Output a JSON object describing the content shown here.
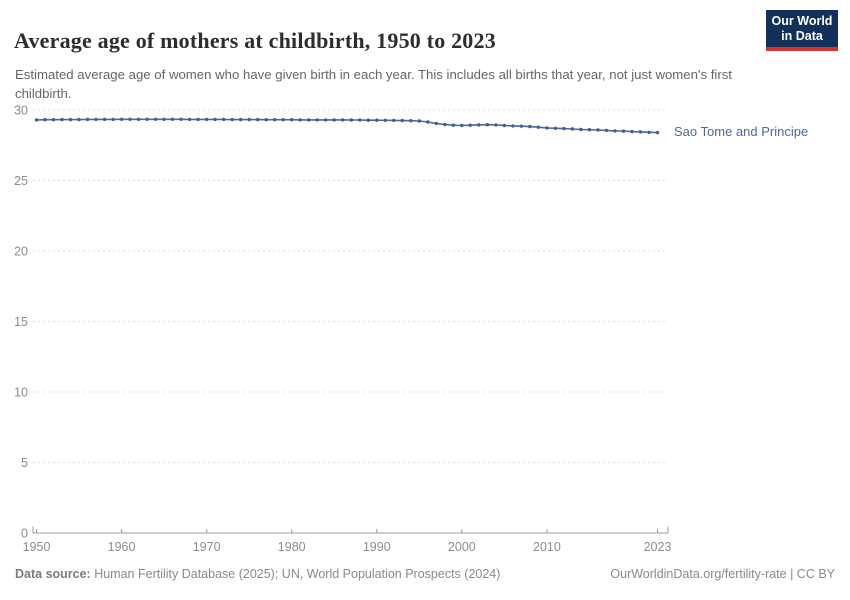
{
  "header": {
    "title": "Average age of mothers at childbirth, 1950 to 2023",
    "subtitle": "Estimated average age of women who have given birth in each year. This includes all births that year, not just women's first childbirth.",
    "logo": {
      "line1": "Our World",
      "line2": "in Data"
    }
  },
  "chart_data": {
    "type": "line",
    "title": "Average age of mothers at childbirth, 1950 to 2023",
    "xlabel": "",
    "ylabel": "",
    "xlim": [
      1950,
      2023
    ],
    "ylim": [
      0,
      30
    ],
    "x_ticks": [
      1950,
      1960,
      1970,
      1980,
      1990,
      2000,
      2010,
      2023
    ],
    "y_ticks": [
      0,
      5,
      10,
      15,
      20,
      25,
      30
    ],
    "grid": "horizontal-dashed",
    "legend_position": "end-of-line-label",
    "series": [
      {
        "name": "Sao Tome and Principe",
        "color": "#4C6A9C",
        "marker_color": "#3F5E96",
        "x": [
          1950,
          1951,
          1952,
          1953,
          1954,
          1955,
          1956,
          1957,
          1958,
          1959,
          1960,
          1961,
          1962,
          1963,
          1964,
          1965,
          1966,
          1967,
          1968,
          1969,
          1970,
          1971,
          1972,
          1973,
          1974,
          1975,
          1976,
          1977,
          1978,
          1979,
          1980,
          1981,
          1982,
          1983,
          1984,
          1985,
          1986,
          1987,
          1988,
          1989,
          1990,
          1991,
          1992,
          1993,
          1994,
          1995,
          1996,
          1997,
          1998,
          1999,
          2000,
          2001,
          2002,
          2003,
          2004,
          2005,
          2006,
          2007,
          2008,
          2009,
          2010,
          2011,
          2012,
          2013,
          2014,
          2015,
          2016,
          2017,
          2018,
          2019,
          2020,
          2021,
          2022,
          2023
        ],
        "values": [
          29.3,
          29.31,
          29.31,
          29.32,
          29.32,
          29.32,
          29.33,
          29.33,
          29.33,
          29.33,
          29.34,
          29.34,
          29.34,
          29.34,
          29.34,
          29.34,
          29.34,
          29.34,
          29.33,
          29.33,
          29.33,
          29.33,
          29.33,
          29.32,
          29.32,
          29.32,
          29.32,
          29.31,
          29.31,
          29.31,
          29.31,
          29.3,
          29.3,
          29.3,
          29.3,
          29.3,
          29.3,
          29.29,
          29.29,
          29.28,
          29.28,
          29.27,
          29.26,
          29.25,
          29.24,
          29.22,
          29.15,
          29.05,
          28.97,
          28.92,
          28.9,
          28.92,
          28.94,
          28.96,
          28.94,
          28.9,
          28.87,
          28.85,
          28.82,
          28.78,
          28.73,
          28.7,
          28.68,
          28.65,
          28.62,
          28.6,
          28.58,
          28.55,
          28.52,
          28.5,
          28.47,
          28.45,
          28.42,
          28.4
        ]
      }
    ],
    "colors": {
      "grid": "#dcdcdc",
      "axis": "#9e9e9e",
      "tick_label": "#8c8c8c"
    }
  },
  "footer": {
    "datasource_label": "Data source:",
    "datasource_text": " Human Fertility Database (2025); UN, World Population Prospects (2024)",
    "link_text": "OurWorldinData.org/fertility-rate | CC BY"
  }
}
